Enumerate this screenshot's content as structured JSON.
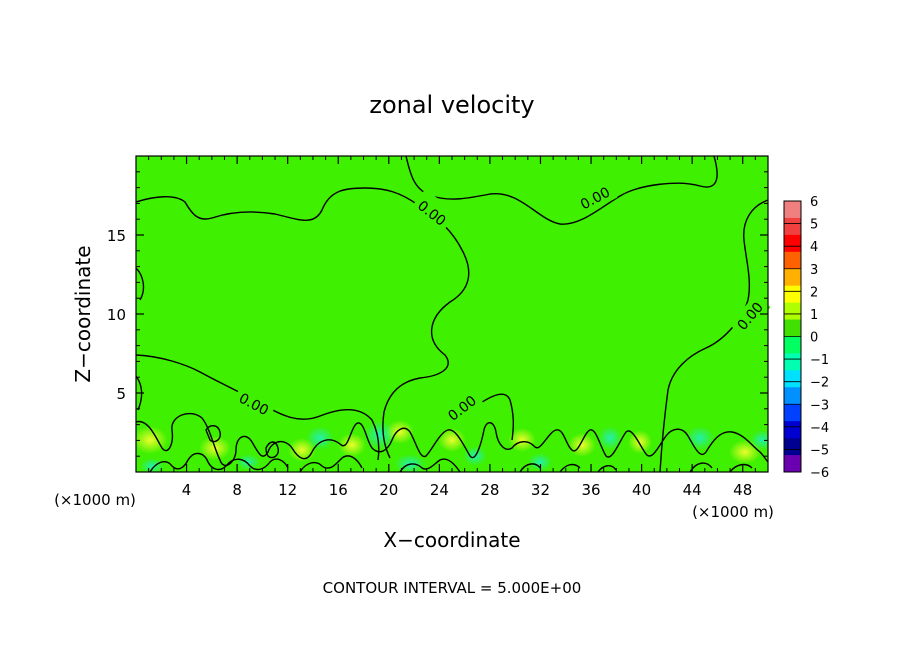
{
  "chart_data": {
    "type": "heatmap",
    "title": "zonal velocity",
    "xlabel": "X−coordinate",
    "ylabel": "Z−coordinate",
    "x_unit_left": "(×1000 m)",
    "x_unit_right": "(×1000 m)",
    "footer": "CONTOUR INTERVAL = 5.000E+00",
    "xlim": [
      0,
      50
    ],
    "ylim": [
      0,
      20
    ],
    "x_ticks": [
      4,
      8,
      12,
      16,
      20,
      24,
      28,
      32,
      36,
      40,
      44,
      48
    ],
    "y_ticks": [
      5,
      10,
      15
    ],
    "contour_level_label": "0.00",
    "colorbar": {
      "min": -6,
      "max": 6,
      "labels": [
        "6",
        "5",
        "4",
        "3",
        "2",
        "1",
        "0",
        "−1",
        "−2",
        "−3",
        "−4",
        "−5",
        "−6"
      ],
      "colors": [
        "#f08080",
        "#f04040",
        "#ff0000",
        "#ff6000",
        "#ffb000",
        "#ffff00",
        "#b0ff00",
        "#40e000",
        "#00ff60",
        "#00ffb0",
        "#00e0ff",
        "#0090ff",
        "#0040ff",
        "#0000d0",
        "#000090",
        "#6a00b0"
      ]
    },
    "field_background_color": "#3ff000"
  }
}
